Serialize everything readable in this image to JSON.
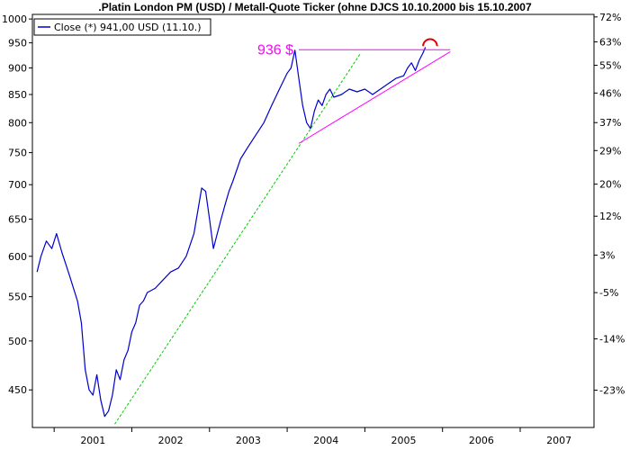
{
  "chart_data": {
    "type": "line",
    "title": ".Platin London PM (USD) / Metall-Quote Ticker (ohne DJCS 10.10.2000 bis 15.10.2007",
    "legend": {
      "label": "Close (*) 941,00 USD (11.10.)",
      "placement": "top-left",
      "color": "#0000cc"
    },
    "y_scale": "log",
    "ylim": [
      415,
      1010
    ],
    "xlim": [
      2000.72,
      2007.95
    ],
    "grid": false,
    "y_ticks": [
      450,
      500,
      550,
      600,
      650,
      700,
      750,
      800,
      850,
      900,
      950,
      1000
    ],
    "y_tick_labels": [
      "450",
      "500",
      "550",
      "600",
      "650",
      "700",
      "750",
      "800",
      "850",
      "900",
      "950",
      "1000"
    ],
    "y2_ticks": [
      -23,
      -14,
      -5,
      3,
      12,
      20,
      29,
      37,
      46,
      55,
      63,
      72
    ],
    "y2_tick_labels": [
      "-23%",
      "-14%",
      "-5%",
      "3%",
      "12%",
      "20%",
      "29%",
      "37%",
      "46%",
      "55%",
      "63%",
      "72%"
    ],
    "y2_base": 584,
    "x_ticks": [
      2001,
      2002,
      2003,
      2004,
      2005,
      2006,
      2007
    ],
    "x_tick_labels": [
      "2001",
      "2002",
      "2003",
      "2004",
      "2005",
      "2006",
      "2007"
    ],
    "series": [
      {
        "color": "#0000cc",
        "x": [
          2000.78,
          2000.83,
          2000.9,
          2000.97,
          2001.03,
          2001.1,
          2001.15,
          2001.2,
          2001.25,
          2001.3,
          2001.35,
          2001.4,
          2001.45,
          2001.5,
          2001.55,
          2001.6,
          2001.65,
          2001.7,
          2001.75,
          2001.8,
          2001.85,
          2001.9,
          2001.95,
          2002.0,
          2002.05,
          2002.1,
          2002.15,
          2002.2,
          2002.3,
          2002.4,
          2002.5,
          2002.6,
          2002.7,
          2002.8,
          2002.9,
          2002.95,
          2003.0,
          2003.05,
          2003.1,
          2003.15,
          2003.2,
          2003.25,
          2003.3,
          2003.4,
          2003.5,
          2003.6,
          2003.7,
          2003.8,
          2003.9,
          2004.0,
          2004.05,
          2004.1,
          2004.15,
          2004.2,
          2004.25,
          2004.3,
          2004.35,
          2004.4,
          2004.45,
          2004.5,
          2004.55,
          2004.6,
          2004.7,
          2004.8,
          2004.9,
          2005.0,
          2005.1,
          2005.2,
          2005.3,
          2005.4,
          2005.5,
          2005.55,
          2005.6,
          2005.65,
          2005.7,
          2005.75,
          2005.78
        ],
        "values": [
          580,
          600,
          620,
          610,
          630,
          605,
          590,
          575,
          560,
          545,
          520,
          470,
          450,
          445,
          465,
          440,
          425,
          430,
          445,
          470,
          460,
          480,
          490,
          510,
          520,
          540,
          545,
          555,
          560,
          570,
          580,
          585,
          600,
          630,
          695,
          690,
          650,
          610,
          630,
          650,
          670,
          690,
          705,
          740,
          760,
          780,
          800,
          830,
          860,
          890,
          900,
          935,
          880,
          830,
          800,
          790,
          820,
          840,
          830,
          850,
          860,
          845,
          850,
          860,
          855,
          860,
          850,
          860,
          870,
          880,
          885,
          900,
          910,
          895,
          915,
          930,
          941
        ]
      }
    ],
    "annotations": [
      {
        "text": "936 $",
        "color": "#ff00ff"
      }
    ],
    "resistance_line": {
      "color": "#ff00ff",
      "y": 936,
      "x": [
        2004.15,
        2006.1
      ]
    },
    "support_line": {
      "color": "#ff00ff",
      "x": [
        2004.15,
        2006.1
      ],
      "y": [
        765,
        932
      ]
    },
    "trend_line": {
      "color": "#00cc00",
      "x": [
        2001.78,
        2004.15,
        2004.95
      ],
      "y": [
        418,
        760,
        930
      ]
    },
    "arc_marker": {
      "color": "#dd0000",
      "x": [
        2005.75,
        2005.93
      ],
      "y": 936
    }
  }
}
